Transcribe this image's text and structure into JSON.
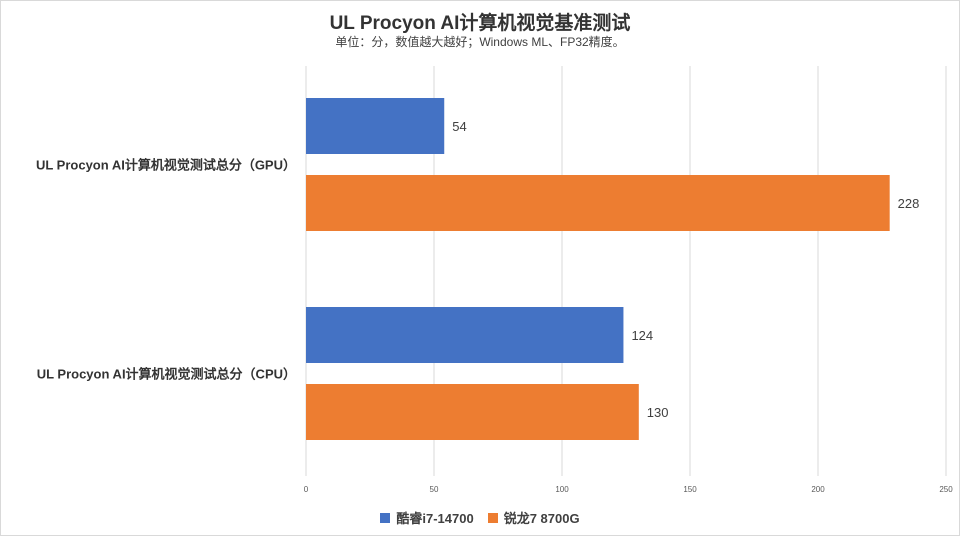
{
  "chart_data": {
    "type": "bar",
    "orientation": "horizontal",
    "title": "UL Procyon AI计算机视觉基准测试",
    "subtitle": "单位：分，数值越大越好；Windows ML、FP32精度。",
    "categories": [
      "UL Procyon AI计算机视觉测试总分（GPU）",
      "UL Procyon AI计算机视觉测试总分（CPU）"
    ],
    "series": [
      {
        "name": "酷睿i7-14700",
        "color": "#4472c4",
        "values": [
          54,
          124
        ]
      },
      {
        "name": "锐龙7 8700G",
        "color": "#ed7d31",
        "values": [
          228,
          130
        ]
      }
    ],
    "xlim": [
      0,
      250
    ],
    "xticks": [
      "0",
      "50",
      "100",
      "150",
      "200",
      "250"
    ],
    "grid": true,
    "legend_position": "bottom"
  }
}
